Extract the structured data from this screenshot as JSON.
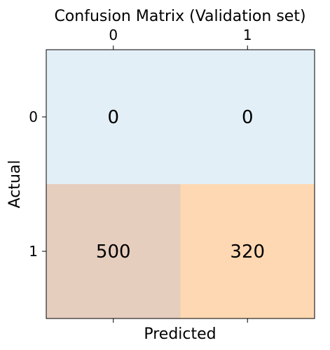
{
  "chart_data": {
    "type": "heatmap",
    "title": "Confusion Matrix (Validation set)",
    "xlabel": "Predicted",
    "ylabel": "Actual",
    "x_categories": [
      "0",
      "1"
    ],
    "y_categories": [
      "0",
      "1"
    ],
    "values": [
      [
        0,
        0
      ],
      [
        500,
        320
      ]
    ],
    "cell_colors": [
      [
        "#e3eff6",
        "#e3eff6"
      ],
      [
        "#e6cebf",
        "#fed8b2"
      ]
    ],
    "x_ticks_position": "top",
    "grid": false
  }
}
